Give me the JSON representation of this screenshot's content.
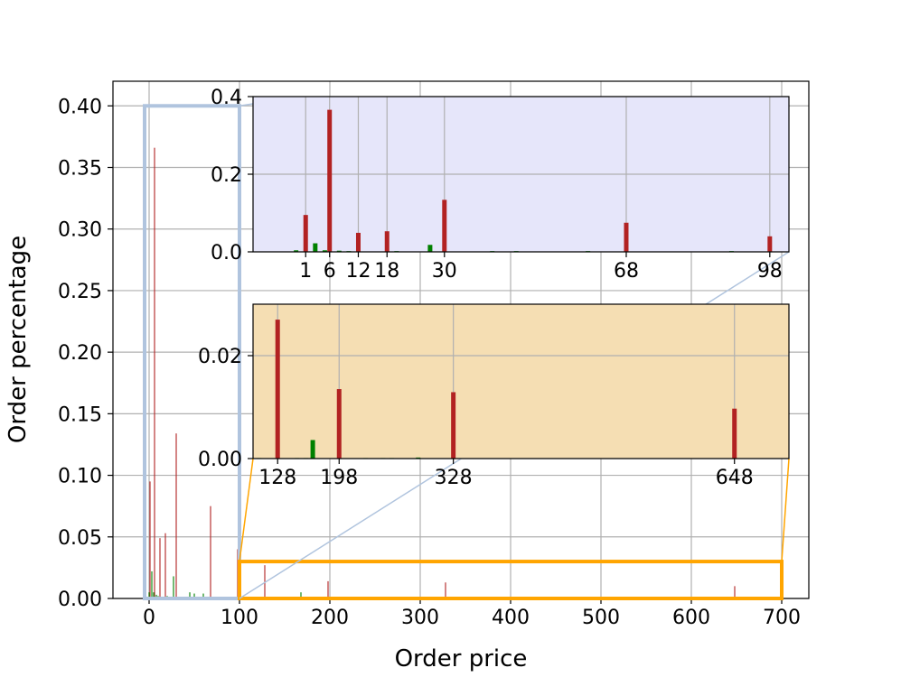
{
  "colors": {
    "red_series": "#b22222",
    "green_series": "#008000",
    "inset1_bg": "#e6e6fa",
    "inset2_bg": "#f5deb3",
    "zoom1_box": "#b0c4de",
    "zoom2_box": "#ffa500",
    "grid": "#b0b0b0"
  },
  "chart_data": [
    {
      "type": "bar",
      "panel": "main",
      "xlabel": "Order price",
      "ylabel": "Order percentage",
      "xlim": [
        -40,
        730
      ],
      "ylim": [
        0,
        0.42
      ],
      "xticks": [
        0,
        100,
        200,
        300,
        400,
        500,
        600,
        700
      ],
      "yticks": [
        "0.00",
        "0.05",
        "0.10",
        "0.15",
        "0.20",
        "0.25",
        "0.30",
        "0.35",
        "0.40"
      ],
      "grid": true,
      "zoom_regions": [
        {
          "x": [
            -5,
            100
          ],
          "y": [
            0,
            0.4
          ],
          "color": "zoom1_box"
        },
        {
          "x": [
            100,
            700
          ],
          "y": [
            0,
            0.03
          ],
          "color": "zoom2_box"
        }
      ],
      "series": [
        {
          "color": "red_series",
          "x": [
            1,
            6,
            12,
            18,
            30,
            68,
            98,
            128,
            198,
            328,
            648
          ],
          "values": [
            0.095,
            0.366,
            0.049,
            0.053,
            0.134,
            0.075,
            0.04,
            0.027,
            0.014,
            0.013,
            0.01
          ]
        },
        {
          "color": "green_series",
          "x": [
            0,
            3,
            5,
            8,
            10,
            15,
            20,
            25,
            27,
            40,
            45,
            50,
            60,
            78,
            90,
            168,
            180,
            230,
            260
          ],
          "values": [
            0.005,
            0.022,
            0.005,
            0.003,
            0.002,
            0.001,
            0.002,
            0.001,
            0.018,
            0.001,
            0.005,
            0.004,
            0.004,
            0.001,
            0.001,
            0.005,
            0.001,
            0.001,
            0.001
          ]
        }
      ]
    },
    {
      "type": "bar",
      "panel": "inset-top",
      "xlim": [
        -10,
        102
      ],
      "ylim": [
        0,
        0.4
      ],
      "xticks": [
        1,
        6,
        12,
        18,
        30,
        68,
        98
      ],
      "yticks": [
        "0.0",
        "0.2",
        "0.4"
      ],
      "grid": true,
      "series": [
        {
          "color": "red_series",
          "x": [
            1,
            6,
            12,
            18,
            30,
            68,
            98
          ],
          "values": [
            0.095,
            0.366,
            0.049,
            0.053,
            0.134,
            0.075,
            0.04
          ]
        },
        {
          "color": "green_series",
          "x": [
            -1,
            3,
            5,
            8,
            10,
            15,
            20,
            25,
            27,
            40,
            45,
            60,
            78,
            90
          ],
          "values": [
            0.004,
            0.022,
            0.004,
            0.003,
            0.002,
            0.001,
            0.002,
            0.001,
            0.018,
            0.002,
            0.002,
            0.002,
            0.001,
            0.002
          ]
        }
      ]
    },
    {
      "type": "bar",
      "panel": "inset-bottom",
      "xlim": [
        100,
        710
      ],
      "ylim": [
        0,
        0.03
      ],
      "xticks": [
        128,
        198,
        328,
        648
      ],
      "yticks": [
        "0.00",
        "0.02"
      ],
      "grid": true,
      "series": [
        {
          "color": "red_series",
          "x": [
            128,
            198,
            328,
            648
          ],
          "values": [
            0.027,
            0.0135,
            0.0129,
            0.0097
          ]
        },
        {
          "color": "green_series",
          "x": [
            107,
            150,
            160,
            168,
            228,
            248,
            258,
            288
          ],
          "values": [
            0.0001,
            0.0001,
            0.0001,
            0.0036,
            0.0001,
            0.0001,
            0.0001,
            0.0002
          ]
        }
      ]
    }
  ]
}
